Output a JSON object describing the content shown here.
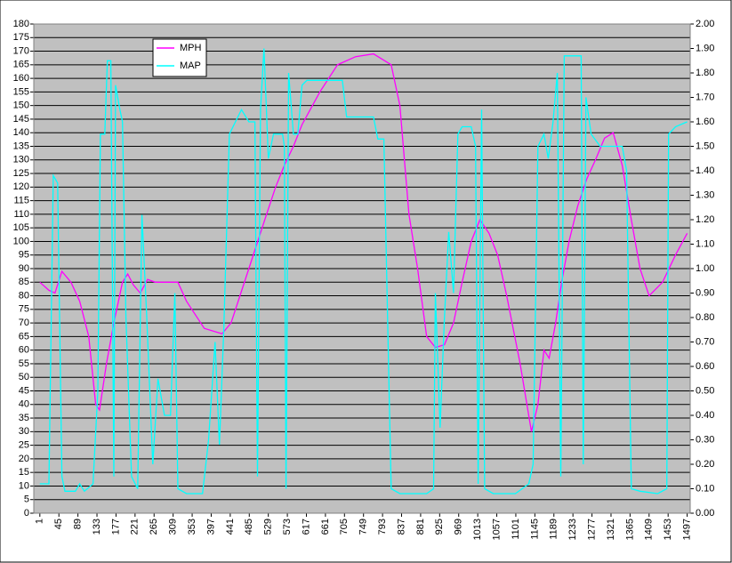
{
  "chart_data": {
    "type": "line",
    "series": [
      {
        "name": "MPH",
        "color": "#ff00ff",
        "axis": "y",
        "x": [
          1,
          22,
          36,
          52,
          73,
          93,
          114,
          130,
          139,
          155,
          172,
          192,
          204,
          217,
          233,
          250,
          268,
          320,
          340,
          381,
          422,
          443,
          484,
          525,
          546,
          566,
          587,
          607,
          648,
          689,
          731,
          772,
          813,
          833,
          854,
          874,
          895,
          915,
          936,
          957,
          977,
          998,
          1018,
          1039,
          1059,
          1080,
          1111,
          1137,
          1152,
          1166,
          1178,
          1193,
          1207,
          1224,
          1244,
          1265,
          1285,
          1306,
          1326,
          1347,
          1368,
          1388,
          1409,
          1440,
          1470,
          1497
        ],
        "values": [
          85,
          82,
          81,
          89,
          85,
          78,
          65,
          40,
          38,
          55,
          70,
          85,
          88,
          84,
          81,
          86,
          85,
          85,
          78,
          68,
          66,
          70,
          90,
          110,
          120,
          128,
          135,
          143,
          155,
          165,
          168,
          169,
          165,
          150,
          110,
          90,
          65,
          61,
          62,
          70,
          85,
          100,
          108,
          103,
          95,
          80,
          55,
          30,
          40,
          60,
          57,
          70,
          85,
          100,
          113,
          123,
          130,
          138,
          140,
          128,
          108,
          90,
          80,
          85,
          95,
          103
        ]
      },
      {
        "name": "MAP",
        "color": "#00ffff",
        "axis": "y2",
        "x": [
          1,
          11,
          22,
          32,
          42,
          52,
          59,
          83,
          93,
          104,
          124,
          135,
          141,
          151,
          157,
          165,
          172,
          176,
          186,
          192,
          200,
          213,
          227,
          237,
          248,
          262,
          274,
          289,
          303,
          313,
          320,
          340,
          377,
          391,
          406,
          416,
          426,
          439,
          453,
          467,
          484,
          498,
          504,
          511,
          519,
          529,
          541,
          562,
          566,
          570,
          576,
          587,
          597,
          607,
          618,
          648,
          700,
          710,
          731,
          772,
          782,
          796,
          807,
          813,
          833,
          895,
          911,
          915,
          926,
          936,
          946,
          957,
          967,
          977,
          998,
          1008,
          1014,
          1022,
          1029,
          1049,
          1100,
          1131,
          1141,
          1152,
          1166,
          1176,
          1187,
          1197,
          1205,
          1213,
          1244,
          1252,
          1257,
          1263,
          1275,
          1296,
          1337,
          1347,
          1357,
          1368,
          1388,
          1429,
          1450,
          1454,
          1470,
          1497
        ],
        "values": [
          0.12,
          0.12,
          0.12,
          1.38,
          1.35,
          0.15,
          0.09,
          0.09,
          0.12,
          0.09,
          0.12,
          0.5,
          1.55,
          1.55,
          1.85,
          1.85,
          0.15,
          1.75,
          1.65,
          1.6,
          0.8,
          0.15,
          0.1,
          1.22,
          0.8,
          0.2,
          0.55,
          0.4,
          0.4,
          0.9,
          0.1,
          0.08,
          0.08,
          0.3,
          0.7,
          0.28,
          0.75,
          1.55,
          1.6,
          1.65,
          1.6,
          1.6,
          0.15,
          1.65,
          1.9,
          1.45,
          1.55,
          1.55,
          1.5,
          0.1,
          1.8,
          1.55,
          1.55,
          1.75,
          1.77,
          1.77,
          1.77,
          1.62,
          1.62,
          1.62,
          1.53,
          1.53,
          0.6,
          0.1,
          0.08,
          0.08,
          0.1,
          0.9,
          0.35,
          0.8,
          1.15,
          0.9,
          1.55,
          1.58,
          1.58,
          1.5,
          0.12,
          1.65,
          0.1,
          0.08,
          0.08,
          0.12,
          0.2,
          1.5,
          1.55,
          1.45,
          1.6,
          1.8,
          0.15,
          1.87,
          1.87,
          1.87,
          0.2,
          1.7,
          1.55,
          1.5,
          1.5,
          1.5,
          1.4,
          0.1,
          0.09,
          0.08,
          0.1,
          1.55,
          1.58,
          1.6
        ]
      }
    ],
    "xlim": [
      -13,
      1504
    ],
    "xticks": [
      1,
      45,
      89,
      133,
      177,
      221,
      265,
      309,
      353,
      397,
      441,
      485,
      529,
      573,
      617,
      661,
      705,
      749,
      793,
      837,
      881,
      925,
      969,
      1013,
      1057,
      1101,
      1145,
      1189,
      1233,
      1277,
      1321,
      1365,
      1409,
      1453,
      1497
    ],
    "ylim": [
      0,
      180
    ],
    "yticks": [
      0,
      5,
      10,
      15,
      20,
      25,
      30,
      35,
      40,
      45,
      50,
      55,
      60,
      65,
      70,
      75,
      80,
      85,
      90,
      95,
      100,
      105,
      110,
      115,
      120,
      125,
      130,
      135,
      140,
      145,
      150,
      155,
      160,
      165,
      170,
      175,
      180
    ],
    "y2lim": [
      0,
      2
    ],
    "y2ticks": [
      {
        "value": 0,
        "label": "0.00"
      },
      {
        "value": 0.1,
        "label": "0.10"
      },
      {
        "value": 0.2,
        "label": "0.20"
      },
      {
        "value": 0.3,
        "label": "0.30"
      },
      {
        "value": 0.4,
        "label": "0.40"
      },
      {
        "value": 0.5,
        "label": "0.50"
      },
      {
        "value": 0.6,
        "label": "0.60"
      },
      {
        "value": 0.7,
        "label": "0.70"
      },
      {
        "value": 0.8,
        "label": "0.80"
      },
      {
        "value": 0.9,
        "label": "0.90"
      },
      {
        "value": 1,
        "label": "1.00"
      },
      {
        "value": 1.1,
        "label": "1.10"
      },
      {
        "value": 1.2,
        "label": "1.20"
      },
      {
        "value": 1.3,
        "label": "1.30"
      },
      {
        "value": 1.4,
        "label": "1.40"
      },
      {
        "value": 1.5,
        "label": "1.50"
      },
      {
        "value": 1.6,
        "label": "1.60"
      },
      {
        "value": 1.7,
        "label": "1.70"
      },
      {
        "value": 1.8,
        "label": "1.80"
      },
      {
        "value": 1.9,
        "label": "1.90"
      },
      {
        "value": 2,
        "label": "2.00"
      }
    ],
    "grid": true
  }
}
